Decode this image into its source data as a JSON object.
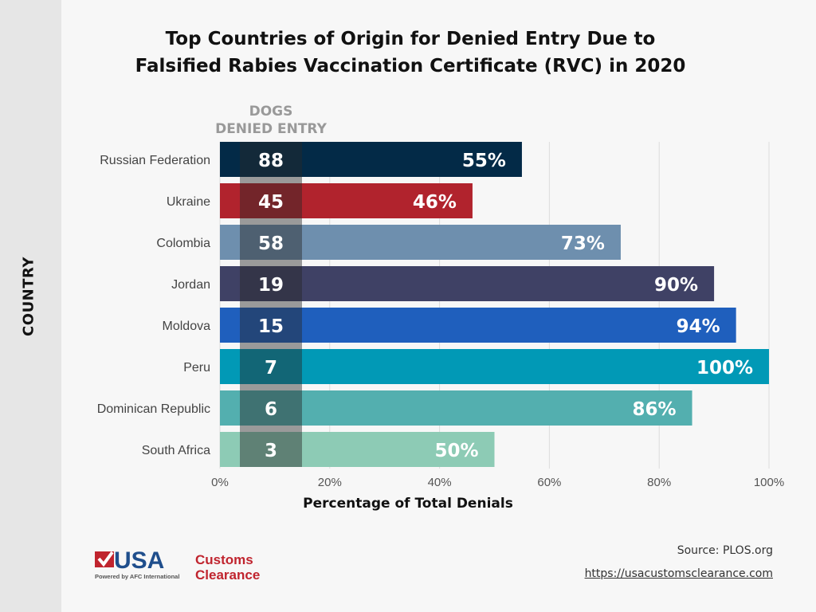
{
  "chart_data": {
    "type": "bar",
    "orientation": "horizontal",
    "title": "Top Countries of Origin for Denied Entry Due to Falsified Rabies Vaccination Certificate (RVC) in 2020",
    "title_lines": [
      "Top Countries of Origin for Denied Entry Due to",
      "Falsified Rabies Vaccination Certificate (RVC) in 2020"
    ],
    "xlabel": "Percentage of Total Denials",
    "ylabel": "COUNTRY",
    "xlim": [
      0,
      100
    ],
    "x_ticks": [
      "0%",
      "20%",
      "40%",
      "60%",
      "80%",
      "100%"
    ],
    "grid": true,
    "categories": [
      "Russian Federation",
      "Ukraine",
      "Colombia",
      "Jordan",
      "Moldova",
      "Peru",
      "Dominican Republic",
      "South Africa"
    ],
    "values": [
      55,
      46,
      73,
      90,
      94,
      100,
      86,
      50
    ],
    "value_labels": [
      "55%",
      "46%",
      "73%",
      "90%",
      "94%",
      "100%",
      "86%",
      "50%"
    ],
    "dogs_denied_header": [
      "DOGS",
      "DENIED ENTRY"
    ],
    "dogs_denied": [
      88,
      45,
      58,
      19,
      15,
      7,
      6,
      3
    ],
    "colors": [
      "#032a47",
      "#b1232d",
      "#6e8fae",
      "#3f4165",
      "#1f5fbd",
      "#0199b6",
      "#53afaf",
      "#8dcbb5"
    ]
  },
  "footer": {
    "source": "Source: PLOS.org",
    "url": "https://usacustomsclearance.com",
    "logo_text": "USA Customs Clearance",
    "logo_tagline": "Powered by AFC International"
  }
}
